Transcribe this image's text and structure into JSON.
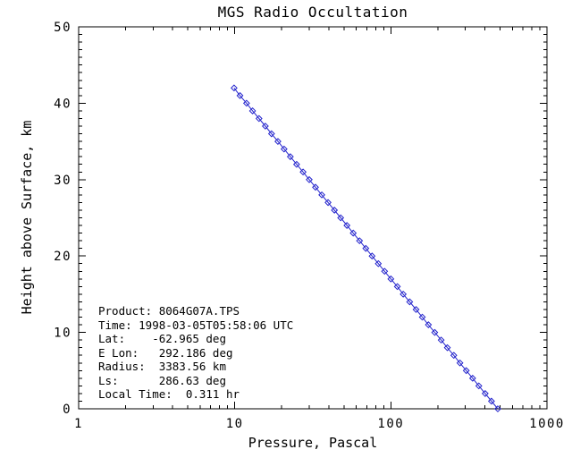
{
  "chart_data": {
    "type": "line",
    "title": "MGS Radio Occultation",
    "xlabel": "Pressure, Pascal",
    "ylabel": "Height above Surface, km",
    "x_scale": "log",
    "y_scale": "linear",
    "xlim": [
      1,
      1000
    ],
    "ylim": [
      0,
      50
    ],
    "x_major_ticks": [
      1,
      10,
      100,
      1000
    ],
    "x_tick_labels": [
      "1",
      "10",
      "100",
      "1000"
    ],
    "x_minor_multiples": [
      2,
      3,
      4,
      5,
      6,
      7,
      8,
      9
    ],
    "y_major_ticks": [
      0,
      10,
      20,
      30,
      40,
      50
    ],
    "y_tick_labels": [
      "0",
      "10",
      "20",
      "30",
      "40",
      "50"
    ],
    "y_minor_step": 1,
    "grid": false,
    "legend": "none",
    "marker": "open-diamond",
    "line_color": "#2222cc",
    "axis_color": "#000000",
    "background_color": "#ffffff",
    "series": [
      {
        "name": "pressure_height_profile",
        "points_pressure_height": [
          [
            484,
            0
          ],
          [
            441,
            1
          ],
          [
            402,
            2
          ],
          [
            366,
            3
          ],
          [
            334,
            4
          ],
          [
            304,
            5
          ],
          [
            277,
            6
          ],
          [
            253,
            7
          ],
          [
            230,
            8
          ],
          [
            210,
            9
          ],
          [
            191,
            10
          ],
          [
            174,
            11
          ],
          [
            159,
            12
          ],
          [
            145,
            13
          ],
          [
            132,
            14
          ],
          [
            120,
            15
          ],
          [
            110,
            16
          ],
          [
            100,
            17
          ],
          [
            91.2,
            18
          ],
          [
            83.1,
            19
          ],
          [
            75.8,
            20
          ],
          [
            69.1,
            21
          ],
          [
            63.0,
            22
          ],
          [
            57.4,
            23
          ],
          [
            52.3,
            24
          ],
          [
            47.7,
            25
          ],
          [
            43.5,
            26
          ],
          [
            39.6,
            27
          ],
          [
            36.1,
            28
          ],
          [
            32.9,
            29
          ],
          [
            30.0,
            30
          ],
          [
            27.4,
            31
          ],
          [
            24.9,
            32
          ],
          [
            22.7,
            33
          ],
          [
            20.7,
            34
          ],
          [
            18.9,
            35
          ],
          [
            17.2,
            36
          ],
          [
            15.7,
            37
          ],
          [
            14.3,
            38
          ],
          [
            13.0,
            39
          ],
          [
            11.9,
            40
          ],
          [
            10.8,
            41
          ],
          [
            9.9,
            42
          ]
        ]
      }
    ]
  },
  "annotations": {
    "lines": [
      "Product: 8064G07A.TPS",
      "Time: 1998-03-05T05:58:06 UTC",
      "Lat:    -62.965 deg",
      "E Lon:   292.186 deg",
      "Radius:  3383.56 km",
      "Ls:      286.63 deg",
      "Local Time:  0.311 hr"
    ],
    "product": "8064G07A.TPS",
    "time_utc": "1998-03-05T05:58:06 UTC",
    "lat_deg": -62.965,
    "e_lon_deg": 292.186,
    "radius_km": 3383.56,
    "ls_deg": 286.63,
    "local_time_hr": 0.311
  }
}
